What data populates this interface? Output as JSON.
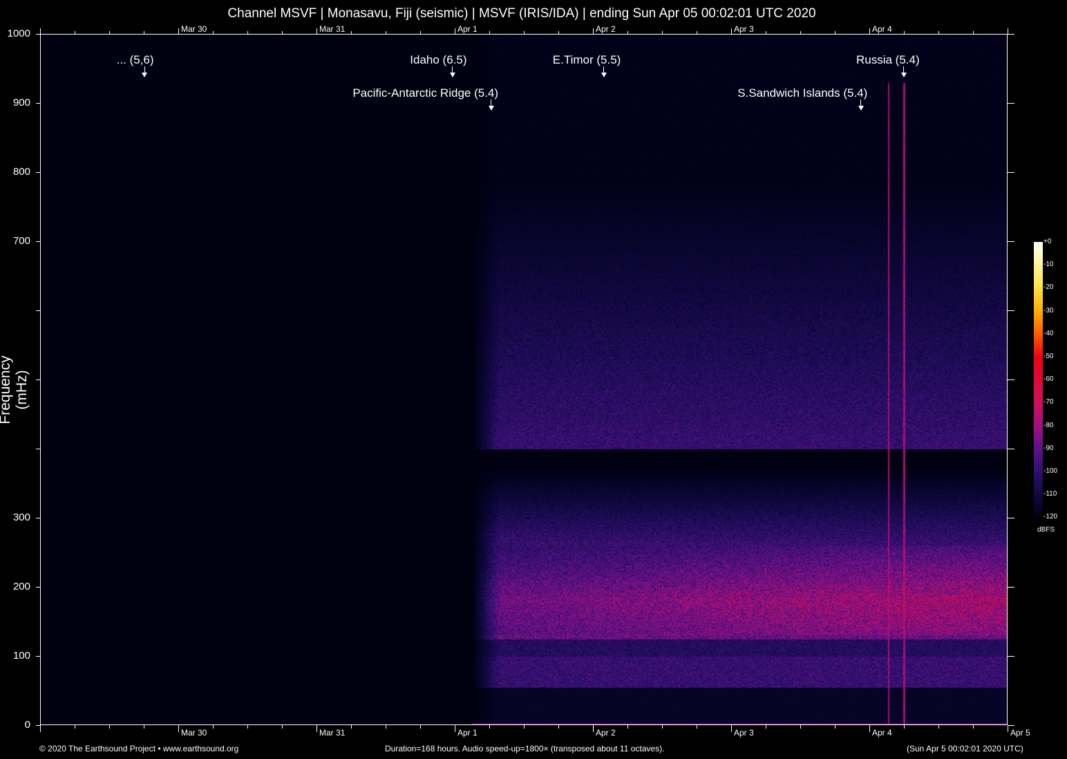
{
  "chart_data": {
    "type": "heatmap",
    "title": "Channel MSVF | Monasavu, Fiji (seismic) | MSVF (IRIS/IDA) | ending Sun Apr 05 00:02:01 UTC 2020",
    "ylabel": "Frequency (mHz)",
    "ylim": [
      0,
      1000
    ],
    "y_ticks": [
      0,
      100,
      200,
      300,
      400,
      500,
      600,
      700,
      800,
      900,
      1000
    ],
    "y_tick_labels": [
      "0",
      "100",
      "200",
      "300",
      "",
      "",
      "",
      "700",
      "800",
      "900",
      "1000"
    ],
    "xlim": [
      "2020-03-29T00:02",
      "2020-04-05T00:02"
    ],
    "x_tick_labels_bottom": [
      "Mar 30",
      "Mar 31",
      "Apr 1",
      "Apr 2",
      "Apr 3",
      "Apr 4",
      "Apr 5"
    ],
    "x_tick_labels_top": [
      "Mar 30",
      "Mar 31",
      "Apr 1",
      "Apr 2",
      "Apr 3",
      "Apr 4"
    ],
    "data_start": "2020-04-01T03:00",
    "colorbar": {
      "label": "dBFS",
      "range": [
        -120,
        0
      ],
      "ticks": [
        "+0",
        "-10",
        "-20",
        "-30",
        "-40",
        "-50",
        "-60",
        "-70",
        "-80",
        "-90",
        "-100",
        "-110",
        "-120"
      ],
      "colormap": [
        "#000010",
        "#100840",
        "#301070",
        "#60108a",
        "#a01080",
        "#d0105a",
        "#f00010",
        "#ff6000",
        "#ffb000",
        "#ffe850",
        "#fffff5"
      ]
    },
    "events": [
      {
        "label": "... (5,6)",
        "time": "2020-03-29T18:10",
        "row": 1
      },
      {
        "label": "Idaho (6.5)",
        "time": "2020-03-31T23:40",
        "row": 1
      },
      {
        "label": "Pacific-Antarctic Ridge (5.4)",
        "time": "2020-04-01T06:20",
        "row": 2
      },
      {
        "label": "E.Timor (5.5)",
        "time": "2020-04-02T01:55",
        "row": 1
      },
      {
        "label": "S.Sandwich Islands (5.4)",
        "time": "2020-04-03T22:35",
        "row": 2
      },
      {
        "label": "Russia (5.4)",
        "time": "2020-04-04T06:00",
        "row": 1
      }
    ],
    "grid": false
  },
  "footer": {
    "copyright": "© 2020 The Earthsound Project • www.earthsound.org",
    "info": "Duration=168 hours. Audio speed-up=1800× (transposed about 11 octaves).",
    "end_time": "(Sun Apr  5 00:02:01 2020 UTC)"
  }
}
